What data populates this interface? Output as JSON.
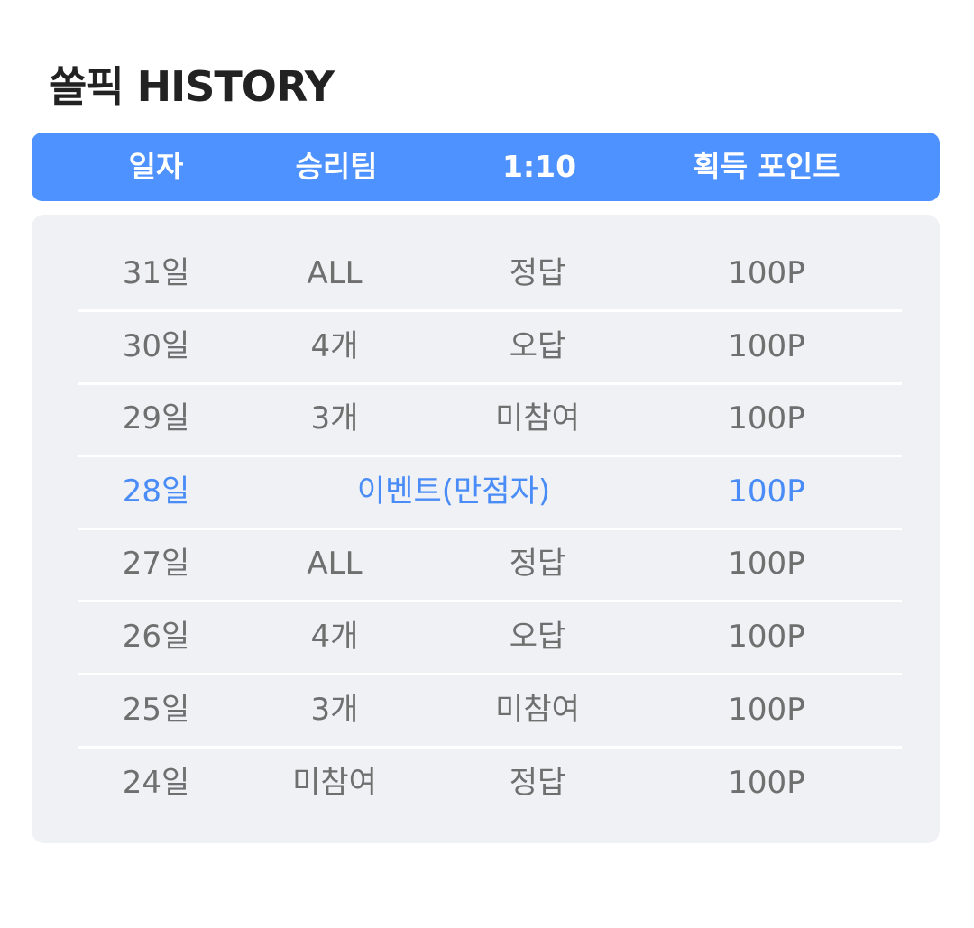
{
  "page": {
    "title": "쏠픽 HISTORY"
  },
  "header": {
    "columns": [
      "일자",
      "승리팀",
      "1:10",
      "획득 포인트"
    ]
  },
  "rows": [
    {
      "date": "31일",
      "team": "ALL",
      "result": "정답",
      "points": "100P"
    },
    {
      "date": "30일",
      "team": "4개",
      "result": "오답",
      "points": "100P"
    },
    {
      "date": "29일",
      "team": "3개",
      "result": "미참여",
      "points": "100P"
    },
    {
      "date": "28일",
      "event": "이벤트(만점자)",
      "points": "100P",
      "highlight": true
    },
    {
      "date": "27일",
      "team": "ALL",
      "result": "정답",
      "points": "100P"
    },
    {
      "date": "26일",
      "team": "4개",
      "result": "오답",
      "points": "100P"
    },
    {
      "date": "25일",
      "team": "3개",
      "result": "미참여",
      "points": "100P"
    },
    {
      "date": "24일",
      "team": "미참여",
      "result": "정답",
      "points": "100P"
    }
  ],
  "colors": {
    "accent": "#4d92ff",
    "highlight_text": "#4a8cf7",
    "row_text": "#6f6f6f",
    "panel_bg": "#eff1f4",
    "title_text": "#222222"
  }
}
